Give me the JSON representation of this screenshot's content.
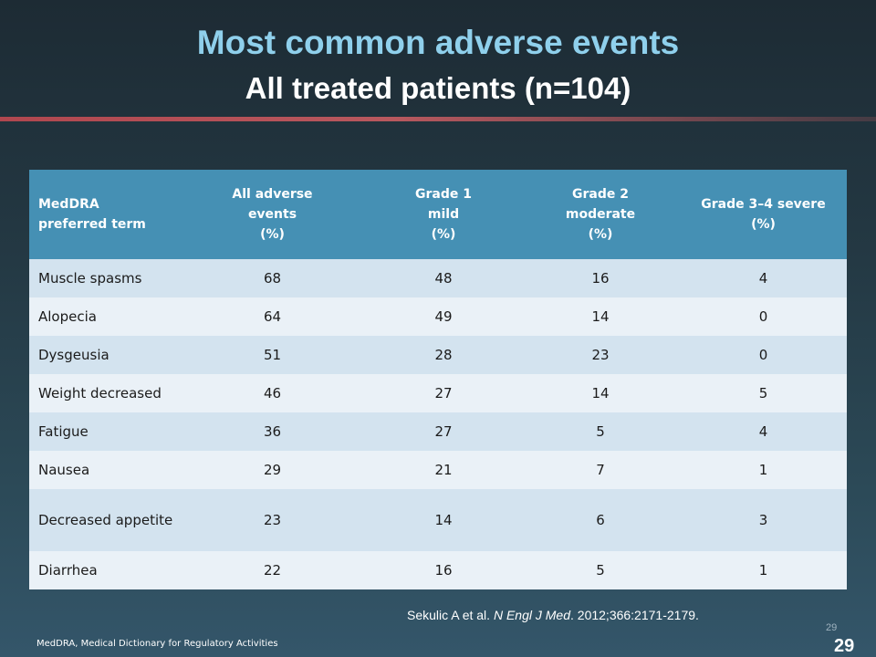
{
  "slide": {
    "title": "Most common adverse events",
    "subtitle": "All treated patients (n=104)"
  },
  "table": {
    "headers": [
      [
        "MedDRA",
        "preferred term"
      ],
      [
        "All adverse",
        "events",
        "(%)"
      ],
      [
        "Grade 1",
        "mild",
        "(%)"
      ],
      [
        "Grade 2",
        "moderate",
        "(%)"
      ],
      [
        "Grade 3–4 severe",
        "(%)"
      ]
    ],
    "rows": [
      [
        "Muscle spasms",
        "68",
        "48",
        "16",
        "4"
      ],
      [
        "Alopecia",
        "64",
        "49",
        "14",
        "0"
      ],
      [
        "Dysgeusia",
        "51",
        "28",
        "23",
        "0"
      ],
      [
        "Weight decreased",
        "46",
        "27",
        "14",
        "5"
      ],
      [
        "Fatigue",
        "36",
        "27",
        "5",
        "4"
      ],
      [
        "Nausea",
        "29",
        "21",
        "7",
        "1"
      ],
      [
        "Decreased appetite",
        "23",
        "14",
        "6",
        "3"
      ],
      [
        "Diarrhea",
        "22",
        "16",
        "5",
        "1"
      ]
    ]
  },
  "citation": {
    "authors": "Sekulic A et al. ",
    "journal": "N Engl J Med",
    "details": ". 2012;366:2171-2179."
  },
  "footnote": "MedDRA, Medical Dictionary for Regulatory Activities",
  "slide_number_small": "29",
  "slide_number": "29"
}
